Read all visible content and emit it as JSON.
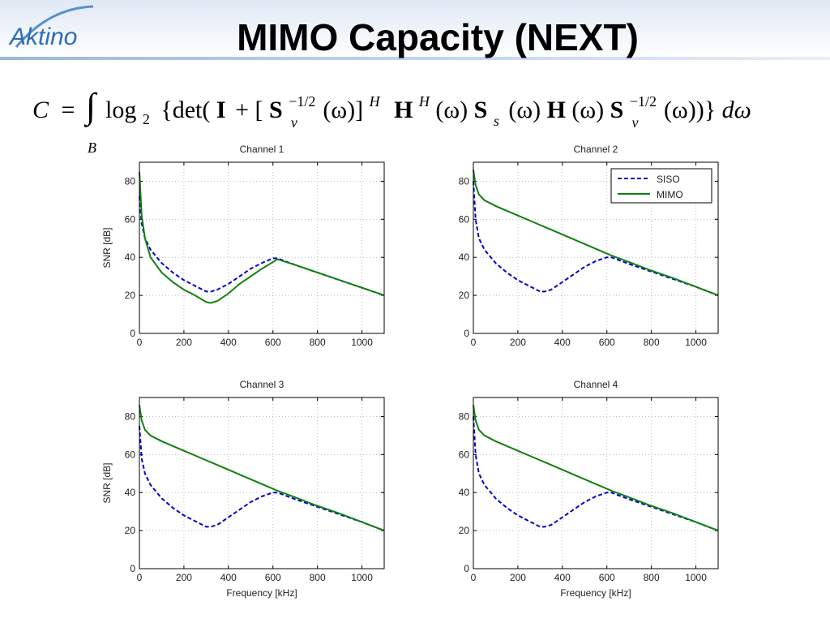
{
  "header": {
    "logo": "Aktino",
    "title": "MIMO Capacity (NEXT)"
  },
  "formula": [
    "C",
    "=",
    "∫",
    "B",
    "log",
    "2",
    "{det(",
    "I",
    "+ [",
    "S",
    "−1/2",
    "v",
    "(ω)]",
    "H",
    "H",
    "H",
    "(ω)",
    "S",
    "s",
    "(ω)",
    "H",
    "(ω)",
    "S",
    "−1/2",
    "v",
    "(ω))}",
    "dω"
  ],
  "chart_data": [
    {
      "type": "line",
      "title": "Channel 1",
      "ylabel": "SNR [dB]",
      "x": [
        0,
        10,
        25,
        50,
        100,
        150,
        200,
        250,
        300,
        320,
        350,
        400,
        450,
        500,
        550,
        600,
        620,
        700,
        800,
        900,
        1000,
        1100
      ],
      "series": [
        {
          "color": "#0000cc",
          "dash": true,
          "values": [
            72,
            58,
            50,
            44,
            37,
            32,
            28,
            25,
            22,
            22,
            23,
            26,
            30,
            34,
            37,
            39.5,
            39.5,
            36,
            32,
            28,
            24,
            20
          ]
        },
        {
          "color": "#108010",
          "values": [
            85,
            62,
            50,
            40,
            32,
            27,
            23,
            20,
            16.5,
            16,
            17,
            21,
            26,
            30,
            34,
            37.5,
            39,
            36,
            32,
            28,
            24,
            20
          ]
        }
      ],
      "xlim": [
        0,
        1100
      ],
      "ylim": [
        0,
        90
      ],
      "xticks": [
        0,
        200,
        400,
        600,
        800,
        1000
      ],
      "yticks": [
        0,
        20,
        40,
        60,
        80
      ],
      "grid": true
    },
    {
      "type": "line",
      "title": "Channel 2",
      "legend": "upper right",
      "x": [
        0,
        10,
        25,
        50,
        100,
        150,
        200,
        250,
        300,
        320,
        350,
        400,
        450,
        500,
        550,
        600,
        620,
        700,
        800,
        900,
        1000,
        1100
      ],
      "series": [
        {
          "name": "SISO",
          "color": "#0000cc",
          "dash": true,
          "values": [
            80,
            60,
            50,
            44,
            37,
            32,
            28,
            25,
            22,
            22,
            23,
            27,
            31,
            35,
            38,
            40,
            40,
            36.5,
            32.5,
            28.5,
            24.5,
            20
          ]
        },
        {
          "name": "MIMO",
          "color": "#108010",
          "values": [
            86,
            78,
            73,
            70,
            67,
            64.5,
            62,
            59.5,
            57,
            56,
            54.5,
            52,
            49.5,
            47,
            44.5,
            42,
            41,
            37.5,
            33,
            29,
            24.5,
            20
          ]
        }
      ],
      "xlim": [
        0,
        1100
      ],
      "ylim": [
        0,
        90
      ],
      "xticks": [
        0,
        200,
        400,
        600,
        800,
        1000
      ],
      "yticks": [
        0,
        20,
        40,
        60,
        80
      ],
      "grid": true
    },
    {
      "type": "line",
      "title": "Channel 3",
      "ylabel": "SNR [dB]",
      "xlabel": "Frequency [kHz]",
      "x": [
        0,
        10,
        25,
        50,
        100,
        150,
        200,
        250,
        300,
        320,
        350,
        400,
        450,
        500,
        550,
        600,
        620,
        700,
        800,
        900,
        1000,
        1100
      ],
      "series": [
        {
          "color": "#0000cc",
          "dash": true,
          "values": [
            75,
            58,
            50,
            44,
            37,
            32,
            28,
            25,
            22,
            22,
            23,
            27,
            31,
            35,
            38,
            40,
            40,
            36.5,
            32.5,
            28.5,
            24.5,
            20
          ]
        },
        {
          "color": "#108010",
          "values": [
            86,
            78,
            73,
            70,
            67,
            64.5,
            62,
            59.5,
            57,
            56,
            54.5,
            52,
            49.5,
            47,
            44.5,
            42,
            41,
            37.5,
            33,
            29,
            24.5,
            20
          ]
        }
      ],
      "xlim": [
        0,
        1100
      ],
      "ylim": [
        0,
        90
      ],
      "xticks": [
        0,
        200,
        400,
        600,
        800,
        1000
      ],
      "yticks": [
        0,
        20,
        40,
        60,
        80
      ],
      "grid": true
    },
    {
      "type": "line",
      "title": "Channel 4",
      "xlabel": "Frequency [kHz]",
      "x": [
        0,
        10,
        25,
        50,
        100,
        150,
        200,
        250,
        300,
        320,
        350,
        400,
        450,
        500,
        550,
        600,
        620,
        700,
        800,
        900,
        1000,
        1100
      ],
      "series": [
        {
          "color": "#0000cc",
          "dash": true,
          "values": [
            80,
            60,
            50,
            44,
            37,
            32,
            28,
            25,
            22,
            22,
            23,
            27,
            31,
            35,
            38,
            40,
            40,
            36.5,
            32.5,
            28.5,
            24.5,
            20
          ]
        },
        {
          "color": "#108010",
          "values": [
            86,
            78,
            73,
            70,
            67,
            64.5,
            62,
            59.5,
            57,
            56,
            54.5,
            52,
            49.5,
            47,
            44.5,
            42,
            41,
            37.5,
            33,
            29,
            24.5,
            20
          ]
        }
      ],
      "xlim": [
        0,
        1100
      ],
      "ylim": [
        0,
        90
      ],
      "xticks": [
        0,
        200,
        400,
        600,
        800,
        1000
      ],
      "yticks": [
        0,
        20,
        40,
        60,
        80
      ],
      "grid": true
    }
  ]
}
